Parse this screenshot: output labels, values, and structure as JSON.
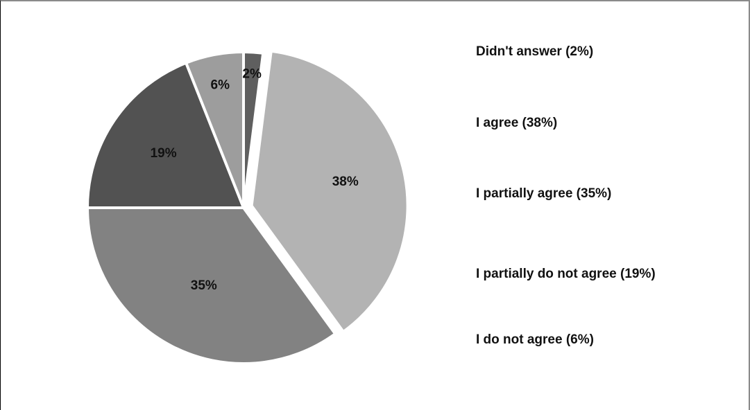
{
  "chart_data": {
    "type": "pie",
    "title": "",
    "slices": [
      {
        "label": "Didn't answer (2%)",
        "value": 2,
        "display": "2%",
        "color": "#5f5f5f"
      },
      {
        "label": "I agree (38%)",
        "value": 38,
        "display": "38%",
        "color": "#b3b3b3"
      },
      {
        "label": "I partially agree (35%)",
        "value": 35,
        "display": "35%",
        "color": "#828282"
      },
      {
        "label": "I partially do not agree (19%)",
        "value": 19,
        "display": "19%",
        "color": "#525252"
      },
      {
        "label": "I do not agree (6%)",
        "value": 6,
        "display": "6%",
        "color": "#9d9d9d"
      }
    ],
    "start_angle_deg": 0,
    "direction": "clockwise",
    "separated_slices": [
      "I agree (38%)"
    ],
    "legend_position": "right",
    "show_data_labels": true
  }
}
